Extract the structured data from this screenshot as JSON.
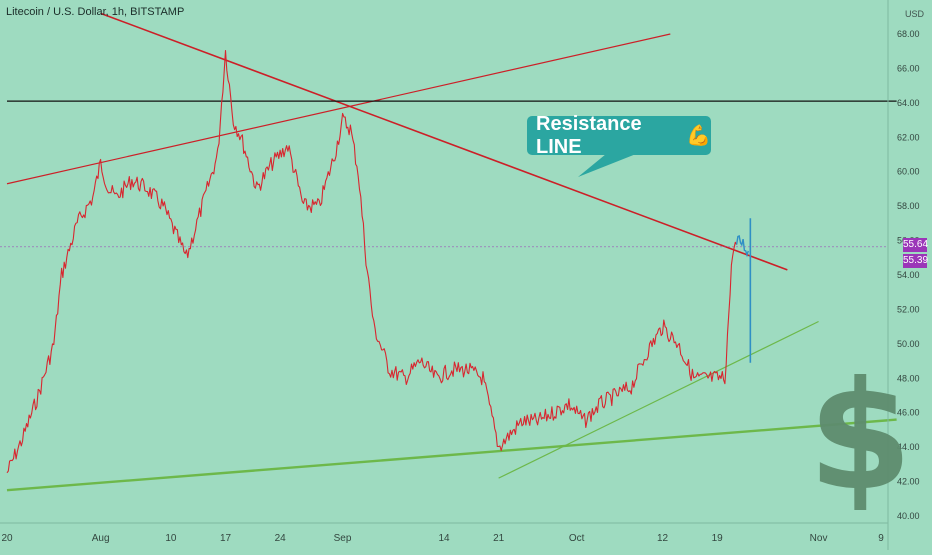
{
  "header": {
    "title": "Litecoin / U.S. Dollar, 1h, BITSTAMP"
  },
  "price_axis": {
    "currency_label": "USD"
  },
  "callout": {
    "text": "Resistance LINE",
    "icon": "flexed-biceps-icon"
  },
  "price_badges": [
    {
      "text": "55.64",
      "color": "#9b35b8"
    },
    {
      "text": "55.39",
      "color": "#9b35b8"
    }
  ],
  "watermark": {
    "icon": "dollar-sign-icon",
    "text": "$"
  },
  "colors": {
    "background": "#9edbc0",
    "candle_line": "#d8262f",
    "last_move": "#2f8fc5",
    "resistance_line": "#cc1f27",
    "support_line": "#6db84a",
    "horizontal_line": "#111111",
    "callout": "#2ba6a1"
  },
  "chart_data": {
    "type": "line",
    "title": "Litecoin / U.S. Dollar, 1h, BITSTAMP",
    "xlabel": "",
    "ylabel": "USD",
    "x_tick_labels": [
      "20",
      "Aug",
      "10",
      "17",
      "24",
      "Sep",
      "14",
      "21",
      "Oct",
      "12",
      "19",
      "Nov",
      "9"
    ],
    "y_ticks": [
      40,
      42,
      44,
      46,
      48,
      50,
      52,
      54,
      56,
      58,
      60,
      62,
      64,
      66,
      68
    ],
    "ylim": [
      39.5,
      69.8
    ],
    "grid": false,
    "series": [
      {
        "x": [
          "Jul 20",
          "Jul 22",
          "Jul 24",
          "Jul 26",
          "Jul 27",
          "Jul 29",
          "Jul 31",
          "Aug 1",
          "Aug 2",
          "Aug 3",
          "Aug 5",
          "Aug 7",
          "Aug 9",
          "Aug 10",
          "Aug 12",
          "Aug 14",
          "Aug 16",
          "Aug 17",
          "Aug 18",
          "Aug 19",
          "Aug 21",
          "Aug 23",
          "Aug 25",
          "Aug 27",
          "Aug 29",
          "Aug 31",
          "Sep 1",
          "Sep 2",
          "Sep 3",
          "Sep 4",
          "Sep 5",
          "Sep 7",
          "Sep 9",
          "Sep 11",
          "Sep 13",
          "Sep 15",
          "Sep 17",
          "Sep 19",
          "Sep 21",
          "Sep 22",
          "Sep 24",
          "Sep 26",
          "Sep 28",
          "Sep 30",
          "Oct 2",
          "Oct 4",
          "Oct 6",
          "Oct 8",
          "Oct 10",
          "Oct 12",
          "Oct 14",
          "Oct 16",
          "Oct 18",
          "Oct 20",
          "Oct 21",
          "Oct 22",
          "Oct 23"
        ],
        "values": [
          42.5,
          44.5,
          47.0,
          50.0,
          54.0,
          57.0,
          58.5,
          60.5,
          59.0,
          58.5,
          59.5,
          59.0,
          58.0,
          57.0,
          55.0,
          58.0,
          61.0,
          67.0,
          63.0,
          62.0,
          59.0,
          60.5,
          61.5,
          58.0,
          58.0,
          61.0,
          63.0,
          62.5,
          60.0,
          55.0,
          51.0,
          48.5,
          48.0,
          49.0,
          48.0,
          48.5,
          48.5,
          48.0,
          44.0,
          44.5,
          45.5,
          45.5,
          46.0,
          46.5,
          45.5,
          46.5,
          47.0,
          47.5,
          49.5,
          51.0,
          50.0,
          48.0,
          48.0,
          48.0,
          55.5,
          56.0,
          55.4
        ]
      }
    ],
    "last_values": [
      55.64,
      55.39
    ],
    "trendlines": [
      {
        "name": "resistance-line",
        "from": [
          "Aug 1",
          69.2
        ],
        "to": [
          "Oct 28",
          54.3
        ]
      },
      {
        "name": "rising-red-line",
        "from": [
          "Jul 20",
          59.3
        ],
        "to": [
          "Oct 13",
          68.0
        ]
      },
      {
        "name": "horizontal-line",
        "from": [
          "Jul 20",
          64.1
        ],
        "to": [
          "Nov 11",
          64.1
        ]
      },
      {
        "name": "lower-support-line",
        "from": [
          "Jul 20",
          41.5
        ],
        "to": [
          "Nov 11",
          45.6
        ]
      },
      {
        "name": "rising-support-line",
        "from": [
          "Sep 21",
          42.2
        ],
        "to": [
          "Nov 1",
          51.3
        ]
      }
    ],
    "legend": "none"
  }
}
